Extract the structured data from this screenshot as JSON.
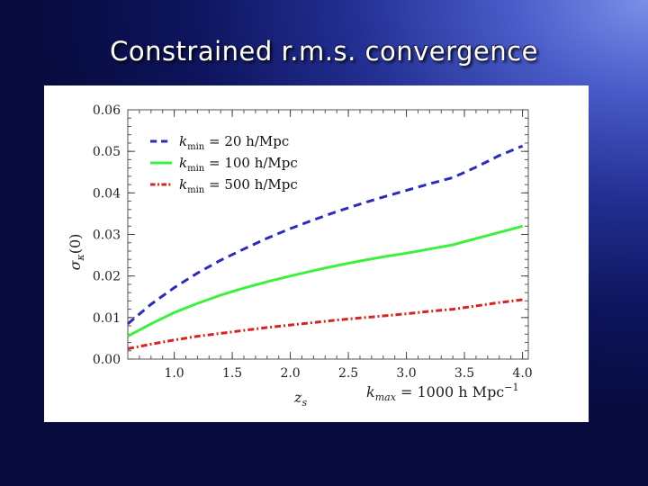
{
  "slide": {
    "title": "Constrained r.m.s. convergence"
  },
  "chart_data": {
    "type": "line",
    "xlabel": "z",
    "xlabel_sub": "s",
    "ylabel": "σ",
    "ylabel_sub": "κ",
    "ylabel_suffix": "(0)",
    "annotation": {
      "main": "k",
      "sub": "max",
      "rest": " = 1000 h Mpc",
      "sup": "−1"
    },
    "xlim": [
      0.6,
      4.05
    ],
    "ylim": [
      0.0,
      0.06
    ],
    "xticks": [
      1.0,
      1.5,
      2.0,
      2.5,
      3.0,
      3.5,
      4.0
    ],
    "xtick_labels": [
      "1.0",
      "1.5",
      "2.0",
      "2.5",
      "3.0",
      "3.5",
      "4.0"
    ],
    "yticks": [
      0.0,
      0.01,
      0.02,
      0.03,
      0.04,
      0.05,
      0.06
    ],
    "ytick_labels": [
      "0.00",
      "0.01",
      "0.02",
      "0.03",
      "0.04",
      "0.05",
      "0.06"
    ],
    "legend_position": "top-left",
    "grid": false,
    "x": [
      0.6,
      0.8,
      1.0,
      1.2,
      1.4,
      1.6,
      1.8,
      2.0,
      2.2,
      2.4,
      2.6,
      2.8,
      3.0,
      3.2,
      3.4,
      3.6,
      3.8,
      4.0
    ],
    "series": [
      {
        "name": "k",
        "name_sub": "min",
        "name_rest": " = 20 h/Mpc",
        "color": "#2b2bb8",
        "dash": "9,6",
        "values": [
          0.0085,
          0.0132,
          0.0172,
          0.0207,
          0.0238,
          0.0265,
          0.0291,
          0.0314,
          0.0335,
          0.0355,
          0.0373,
          0.039,
          0.0406,
          0.0422,
          0.0437,
          0.0462,
          0.049,
          0.0513
        ]
      },
      {
        "name": "k",
        "name_sub": "min",
        "name_rest": " = 100 h/Mpc",
        "color": "#3ef03e",
        "dash": "",
        "values": [
          0.0055,
          0.0085,
          0.0112,
          0.0134,
          0.0154,
          0.0171,
          0.0186,
          0.02,
          0.0213,
          0.0225,
          0.0236,
          0.0246,
          0.0255,
          0.0265,
          0.0275,
          0.029,
          0.0305,
          0.032
        ]
      },
      {
        "name": "k",
        "name_sub": "min",
        "name_rest": " = 500 h/Mpc",
        "color": "#d42525",
        "dash": "7,3,2,3",
        "values": [
          0.0025,
          0.0036,
          0.0046,
          0.0055,
          0.0062,
          0.0069,
          0.0076,
          0.0082,
          0.0088,
          0.0094,
          0.0099,
          0.0104,
          0.0109,
          0.0115,
          0.012,
          0.0128,
          0.0136,
          0.0143
        ]
      }
    ]
  }
}
